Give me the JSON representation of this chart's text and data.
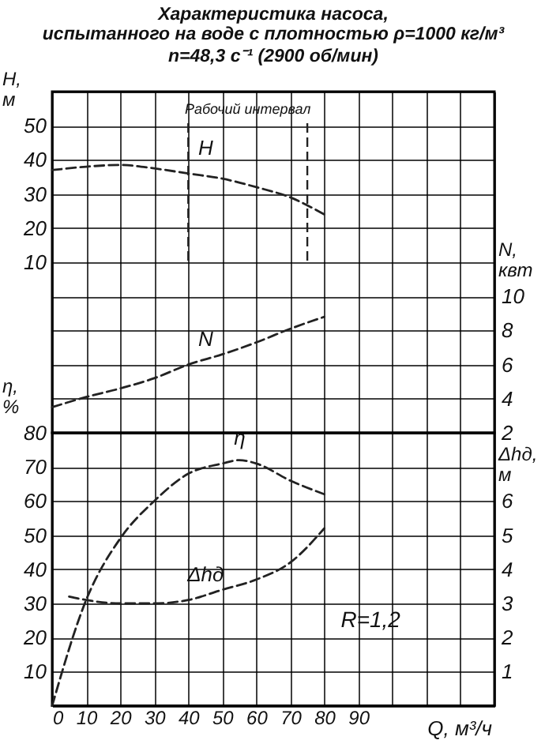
{
  "chart_data": [
    {
      "type": "line",
      "title": "Характеристика насоса,",
      "subtitle": "испытанного на воде с плотностью ρ=1000 кг/м³\nn=48,3 с⁻¹ (2900 об/мин)",
      "ylabel": "H, м",
      "y2label": "N, квт",
      "xlim": [
        0,
        130
      ],
      "xticks": [
        0,
        10,
        20,
        30,
        40,
        50,
        60,
        70,
        80,
        90,
        100,
        110,
        120,
        130
      ],
      "ylim": [
        -40,
        60
      ],
      "yticks": [
        {
          "value": -40,
          "label": null
        },
        {
          "value": -30,
          "label": null
        },
        {
          "value": -20,
          "label": null
        },
        {
          "value": -10,
          "label": null
        },
        {
          "value": 0,
          "label": null
        },
        10,
        20,
        30,
        40,
        50,
        {
          "value": 60,
          "label": null
        }
      ],
      "y2lim": [
        2,
        22
      ],
      "y2ticks": [
        2,
        4,
        6,
        8,
        10
      ],
      "tick_labels": "y",
      "grid": true,
      "line_style": "dashed",
      "series": [
        {
          "name": "H",
          "color": "#222222",
          "axis": "y",
          "x": [
            0,
            10,
            20,
            30,
            40,
            50,
            60,
            70,
            80
          ],
          "values": [
            37,
            38,
            38.5,
            37.5,
            36,
            34.5,
            32,
            29,
            24
          ]
        },
        {
          "name": "N",
          "color": "#222222",
          "axis": "y2",
          "x": [
            0,
            10,
            20,
            30,
            40,
            50,
            60,
            70,
            80
          ],
          "values": [
            3.5,
            4.1,
            4.6,
            5.2,
            6,
            6.6,
            7.3,
            8.1,
            8.8
          ]
        }
      ],
      "ref_lines": [
        {
          "axis": "x",
          "value": 40,
          "line_style": "dashed"
        },
        {
          "axis": "x",
          "value": 75,
          "line_style": "dashed"
        }
      ],
      "annotations": [
        "Рабочий интервал"
      ]
    },
    {
      "type": "line",
      "xlabel": "Q, м³/ч",
      "ylabel": "η, %",
      "y2label": "Δhд, м",
      "xlim": [
        0,
        130
      ],
      "xticks": [
        0,
        10,
        20,
        30,
        40,
        50,
        60,
        70,
        80,
        90,
        {
          "value": 100,
          "label": null
        },
        {
          "value": 110,
          "label": null
        },
        {
          "value": 120,
          "label": null
        },
        {
          "value": 130,
          "label": null
        }
      ],
      "ylim": [
        0,
        80
      ],
      "yticks": [
        {
          "value": 0,
          "label": null
        },
        10,
        20,
        30,
        40,
        50,
        60,
        70,
        80
      ],
      "y2lim": [
        0,
        8
      ],
      "y2ticks": [
        1,
        2,
        3,
        4,
        5,
        6
      ],
      "grid": true,
      "line_style": "dashed",
      "series": [
        {
          "name": "η",
          "color": "#222222",
          "axis": "y",
          "x": [
            0,
            10,
            20,
            30,
            40,
            50,
            55,
            60,
            70,
            80
          ],
          "values": [
            0,
            31,
            49,
            60,
            68,
            71,
            72,
            71,
            66,
            62
          ]
        },
        {
          "name": "Δhд",
          "color": "#222222",
          "axis": "y2",
          "x": [
            5,
            10,
            20,
            30,
            40,
            50,
            60,
            70,
            80
          ],
          "values": [
            3.2,
            3.1,
            3,
            3,
            3.1,
            3.4,
            3.7,
            4.2,
            5.2
          ]
        }
      ],
      "annotations": [
        "R=1,2"
      ]
    }
  ]
}
